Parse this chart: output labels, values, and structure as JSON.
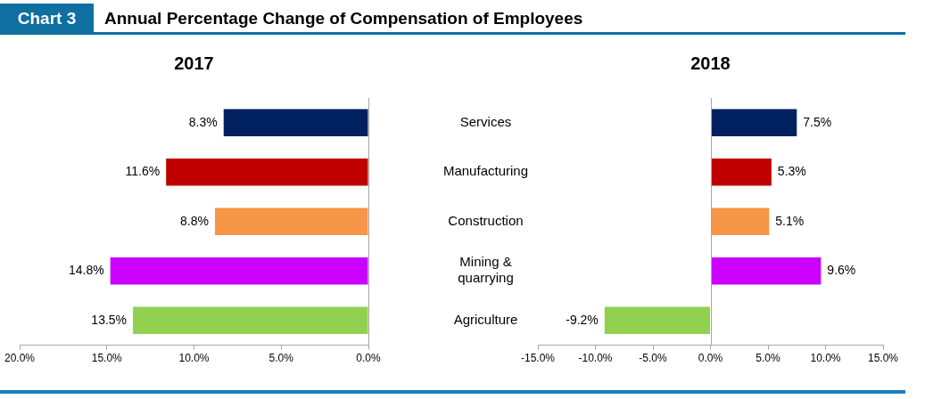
{
  "chart_data": [
    {
      "type": "bar",
      "title": "Annual Percentage Change of Compensation of Employees",
      "subtitle": "2017",
      "annotations": [
        "Chart 3"
      ],
      "orientation": "horizontal",
      "tick_labels": "x",
      "categories": [
        "Services",
        "Manufacturing",
        "Construction",
        "Mining & quarrying",
        "Agriculture"
      ],
      "values": [
        8.3,
        11.6,
        8.8,
        14.8,
        13.5
      ],
      "value_labels": [
        "8.3%",
        "11.6%",
        "8.8%",
        "14.8%",
        "13.5%"
      ],
      "colors": [
        "#002060",
        "#c00000",
        "#f79646",
        "#cc00ff",
        "#92d050"
      ],
      "xlim": [
        20,
        0
      ],
      "xticks": [
        {
          "value": 20,
          "label": "20.0%"
        },
        {
          "value": 15,
          "label": "15.0%"
        },
        {
          "value": 10,
          "label": "10.0%"
        },
        {
          "value": 5,
          "label": "5.0%"
        },
        {
          "value": 0,
          "label": "0.0%"
        }
      ]
    },
    {
      "type": "bar",
      "title": "2018",
      "orientation": "horizontal",
      "categories": [
        "Services",
        "Manufacturing",
        "Construction",
        "Mining & quarrying",
        "Agriculture"
      ],
      "values": [
        7.5,
        5.3,
        5.1,
        9.6,
        -9.2
      ],
      "value_labels": [
        "7.5%",
        "5.3%",
        "5.1%",
        "9.6%",
        "-9.2%"
      ],
      "colors": [
        "#002060",
        "#c00000",
        "#f79646",
        "#cc00ff",
        "#92d050"
      ],
      "xlim": [
        -15,
        15
      ],
      "xticks": [
        {
          "value": -15,
          "label": "-15.0%"
        },
        {
          "value": -10,
          "label": "-10.0%"
        },
        {
          "value": -5,
          "label": "-5.0%"
        },
        {
          "value": 0,
          "label": "0.0%"
        },
        {
          "value": 5,
          "label": "5.0%"
        },
        {
          "value": 10,
          "label": "10.0%"
        },
        {
          "value": 15,
          "label": "15.0%"
        }
      ]
    }
  ]
}
